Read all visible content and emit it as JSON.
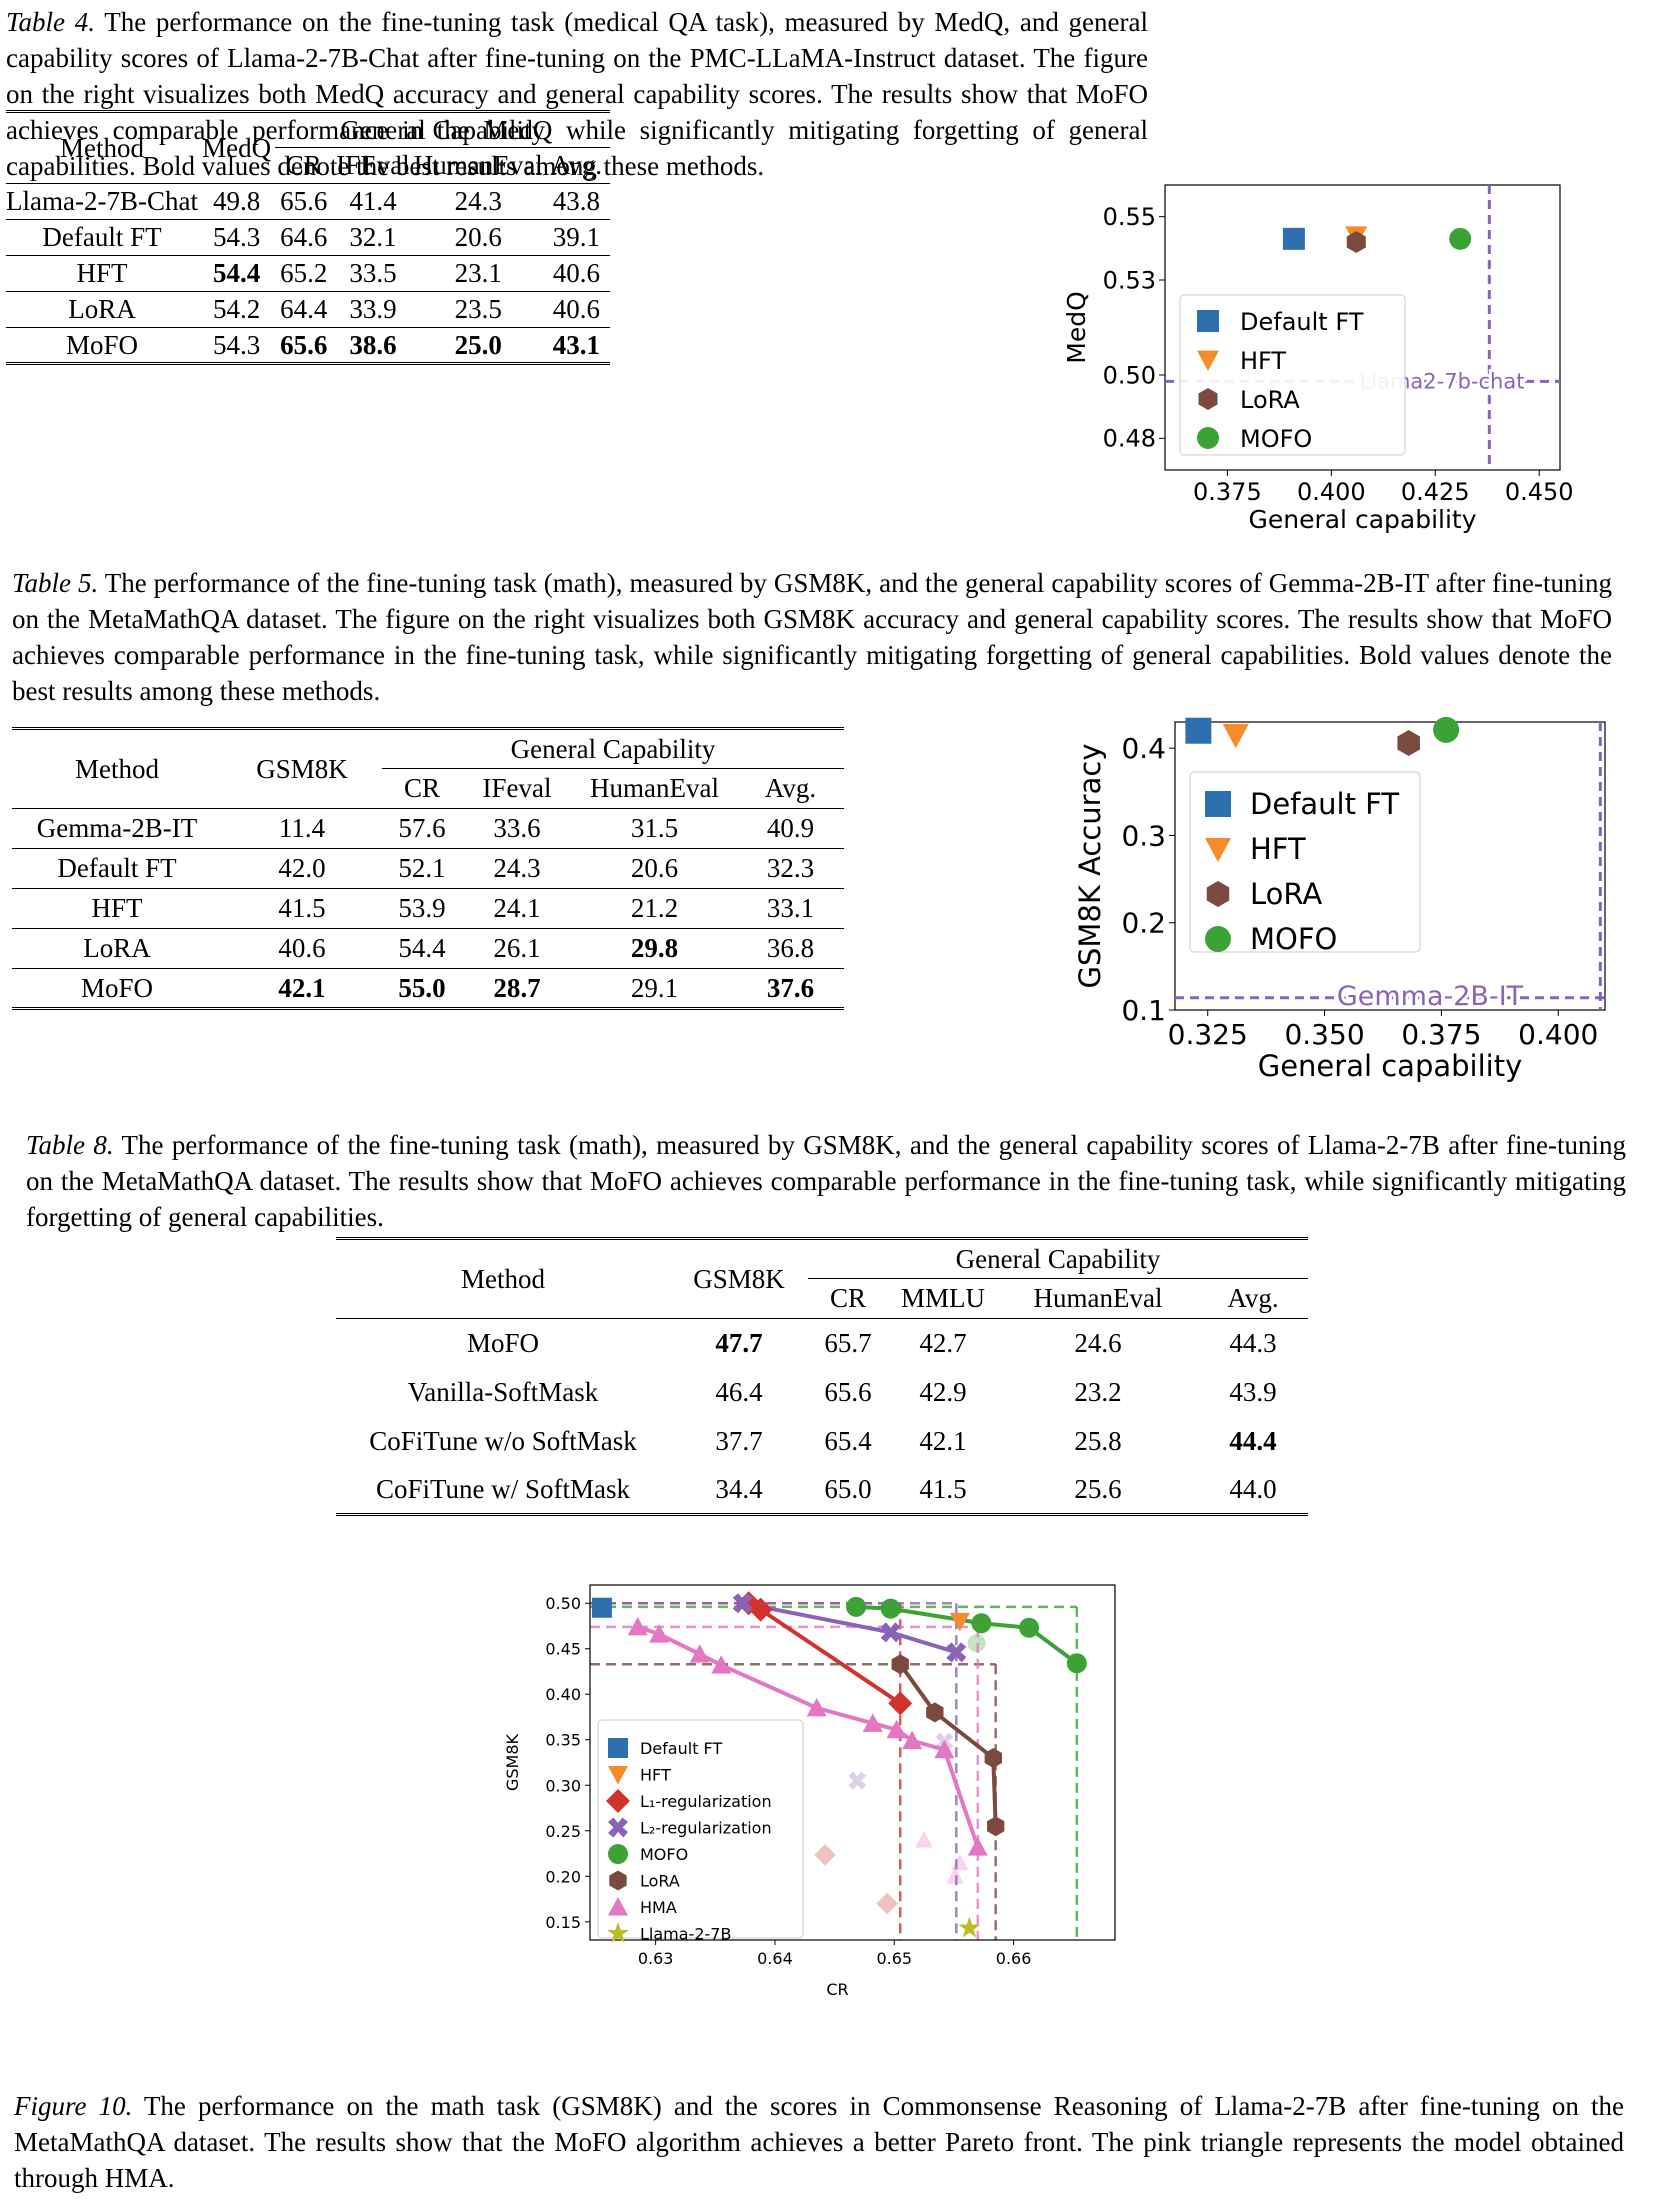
{
  "table4": {
    "caption_label": "Table 4.",
    "caption": "The performance on the fine-tuning task (medical QA task), measured by MedQ, and general capability scores of Llama-2-7B-Chat after fine-tuning on the PMC-LLaMA-Instruct dataset. The figure on the right visualizes both MedQ accuracy and general capability scores. The results show that MoFO achieves comparable performance in the MedQ while significantly mitigating forgetting of general capabilities. Bold values denote the best results among these methods.",
    "headers": {
      "method": "Method",
      "task": "MedQ",
      "group": "General Capability",
      "cols": [
        "CR",
        "IFEval",
        "HumanEval",
        "Avg."
      ]
    },
    "rows": [
      {
        "method": "Llama-2-7B-Chat",
        "v": [
          "49.8",
          "65.6",
          "41.4",
          "24.3",
          "43.8"
        ]
      },
      {
        "method": "Default FT",
        "v": [
          "54.3",
          "64.6",
          "32.1",
          "20.6",
          "39.1"
        ]
      },
      {
        "method": "HFT",
        "v": [
          "54.4",
          "65.2",
          "33.5",
          "23.1",
          "40.6"
        ]
      },
      {
        "method": "LoRA",
        "v": [
          "54.2",
          "64.4",
          "33.9",
          "23.5",
          "40.6"
        ]
      },
      {
        "method": "MoFO",
        "v": [
          "54.3",
          "65.6",
          "38.6",
          "25.0",
          "43.1"
        ]
      }
    ]
  },
  "table5": {
    "caption_label": "Table 5.",
    "caption": "The performance of the fine-tuning task (math), measured by GSM8K, and the general capability scores of Gemma-2B-IT after fine-tuning on the MetaMathQA dataset. The figure on the right visualizes both GSM8K accuracy and general capability scores. The results show that MoFO achieves comparable performance in the fine-tuning task, while significantly mitigating forgetting of general capabilities. Bold values denote the best results among these methods.",
    "headers": {
      "method": "Method",
      "task": "GSM8K",
      "group": "General Capability",
      "cols": [
        "CR",
        "IFeval",
        "HumanEval",
        "Avg."
      ]
    },
    "rows": [
      {
        "method": "Gemma-2B-IT",
        "v": [
          "11.4",
          "57.6",
          "33.6",
          "31.5",
          "40.9"
        ]
      },
      {
        "method": "Default FT",
        "v": [
          "42.0",
          "52.1",
          "24.3",
          "20.6",
          "32.3"
        ]
      },
      {
        "method": "HFT",
        "v": [
          "41.5",
          "53.9",
          "24.1",
          "21.2",
          "33.1"
        ]
      },
      {
        "method": "LoRA",
        "v": [
          "40.6",
          "54.4",
          "26.1",
          "29.8",
          "36.8"
        ]
      },
      {
        "method": "MoFO",
        "v": [
          "42.1",
          "55.0",
          "28.7",
          "29.1",
          "37.6"
        ]
      }
    ]
  },
  "table8": {
    "caption_label": "Table 8.",
    "caption": "The performance of the fine-tuning task (math), measured by GSM8K, and the general capability scores of Llama-2-7B after fine-tuning on the MetaMathQA dataset. The results show that MoFO achieves comparable performance in the fine-tuning task, while significantly mitigating forgetting of general capabilities.",
    "headers": {
      "method": "Method",
      "task": "GSM8K",
      "group": "General Capability",
      "cols": [
        "CR",
        "MMLU",
        "HumanEval",
        "Avg."
      ]
    },
    "rows": [
      {
        "method": "MoFO",
        "v": [
          "47.7",
          "65.7",
          "42.7",
          "24.6",
          "44.3"
        ]
      },
      {
        "method": "Vanilla-SoftMask",
        "v": [
          "46.4",
          "65.6",
          "42.9",
          "23.2",
          "43.9"
        ]
      },
      {
        "method": "CoFiTune w/o SoftMask",
        "v": [
          "37.7",
          "65.4",
          "42.1",
          "25.8",
          "44.4"
        ]
      },
      {
        "method": "CoFiTune w/ SoftMask",
        "v": [
          "34.4",
          "65.0",
          "41.5",
          "25.6",
          "44.0"
        ]
      }
    ]
  },
  "figure10": {
    "caption_label": "Figure 10.",
    "caption": "The performance on the math task (GSM8K) and the scores in Commonsense Reasoning of Llama-2-7B after fine-tuning on the MetaMathQA dataset. The results show that the MoFO algorithm achieves a better Pareto front. The pink triangle represents the model obtained through HMA."
  },
  "chart_data": [
    {
      "type": "scatter",
      "xlabel": "General capability",
      "ylabel": "MedQ",
      "xticks": [
        "0.375",
        "0.400",
        "0.425",
        "0.450"
      ],
      "yticks": [
        "0.48",
        "0.50",
        "0.53",
        "0.55"
      ],
      "xlim": [
        0.36,
        0.455
      ],
      "ylim": [
        0.47,
        0.56
      ],
      "baseline": {
        "label": "Llama2-7b-chat",
        "x": 0.438,
        "y": 0.498
      },
      "legend_position": "center",
      "series": [
        {
          "name": "Default FT",
          "color": "#2e6fb0",
          "marker": "square",
          "x": 0.391,
          "y": 0.543
        },
        {
          "name": "HFT",
          "color": "#f58b2a",
          "marker": "triangle-down",
          "x": 0.406,
          "y": 0.544
        },
        {
          "name": "LoRA",
          "color": "#7b4a3f",
          "marker": "hexagon",
          "x": 0.406,
          "y": 0.542
        },
        {
          "name": "MOFO",
          "color": "#3ca236",
          "marker": "circle",
          "x": 0.431,
          "y": 0.543
        }
      ]
    },
    {
      "type": "scatter",
      "xlabel": "General capability",
      "ylabel": "GSM8K Accuracy",
      "xticks": [
        "0.325",
        "0.350",
        "0.375",
        "0.400"
      ],
      "yticks": [
        "0.1",
        "0.2",
        "0.3",
        "0.4"
      ],
      "xlim": [
        0.318,
        0.41
      ],
      "ylim": [
        0.1,
        0.43
      ],
      "baseline": {
        "label": "Gemma-2B-IT",
        "x": 0.409,
        "y": 0.114
      },
      "legend_position": "center",
      "series": [
        {
          "name": "Default FT",
          "color": "#2e6fb0",
          "marker": "square",
          "x": 0.323,
          "y": 0.42
        },
        {
          "name": "HFT",
          "color": "#f58b2a",
          "marker": "triangle-down",
          "x": 0.331,
          "y": 0.415
        },
        {
          "name": "LoRA",
          "color": "#7b4a3f",
          "marker": "hexagon",
          "x": 0.368,
          "y": 0.406
        },
        {
          "name": "MOFO",
          "color": "#3ca236",
          "marker": "circle",
          "x": 0.376,
          "y": 0.421
        }
      ]
    },
    {
      "type": "line",
      "xlabel": "CR",
      "ylabel": "GSM8K",
      "xticks": [
        "0.63",
        "0.64",
        "0.65",
        "0.66"
      ],
      "yticks": [
        "0.15",
        "0.20",
        "0.25",
        "0.30",
        "0.35",
        "0.40",
        "0.45",
        "0.50"
      ],
      "xlim": [
        0.6245,
        0.6685
      ],
      "ylim": [
        0.13,
        0.52
      ],
      "legend_position": "center-left",
      "series": [
        {
          "name": "Default FT",
          "color": "#2e6fb0",
          "marker": "square",
          "x": [
            0.6255
          ],
          "y": [
            0.495
          ]
        },
        {
          "name": "HFT",
          "color": "#f58b2a",
          "marker": "triangle-down",
          "x": [
            0.6555
          ],
          "y": [
            0.48
          ]
        },
        {
          "name": "L₁-regularization",
          "color": "#d1322c",
          "marker": "diamond",
          "x": [
            0.6378,
            0.6388,
            0.6505
          ],
          "y": [
            0.5,
            0.493,
            0.39
          ]
        },
        {
          "name": "L₂-regularization",
          "color": "#8a63b8",
          "marker": "x",
          "x": [
            0.6373,
            0.6497,
            0.6552
          ],
          "y": [
            0.5,
            0.468,
            0.446
          ]
        },
        {
          "name": "MOFO",
          "color": "#3ca236",
          "marker": "circle",
          "x": [
            0.6468,
            0.6497,
            0.6573,
            0.6613,
            0.6653
          ],
          "y": [
            0.496,
            0.494,
            0.478,
            0.473,
            0.434
          ]
        },
        {
          "name": "LoRA",
          "color": "#7b4a3f",
          "marker": "hexagon",
          "x": [
            0.6505,
            0.6534,
            0.6583,
            0.6585
          ],
          "y": [
            0.433,
            0.38,
            0.33,
            0.255
          ]
        },
        {
          "name": "HMA",
          "color": "#e377c2",
          "marker": "triangle",
          "x": [
            0.6285,
            0.6303,
            0.6337,
            0.6355,
            0.6435,
            0.6482,
            0.6502,
            0.6515,
            0.6542,
            0.657
          ],
          "y": [
            0.474,
            0.466,
            0.444,
            0.432,
            0.385,
            0.368,
            0.361,
            0.349,
            0.339,
            0.232
          ]
        },
        {
          "name": "Llama-2-7B",
          "color": "#bcbd22",
          "marker": "star",
          "x": [
            0.6563
          ],
          "y": [
            0.143
          ]
        }
      ]
    }
  ]
}
